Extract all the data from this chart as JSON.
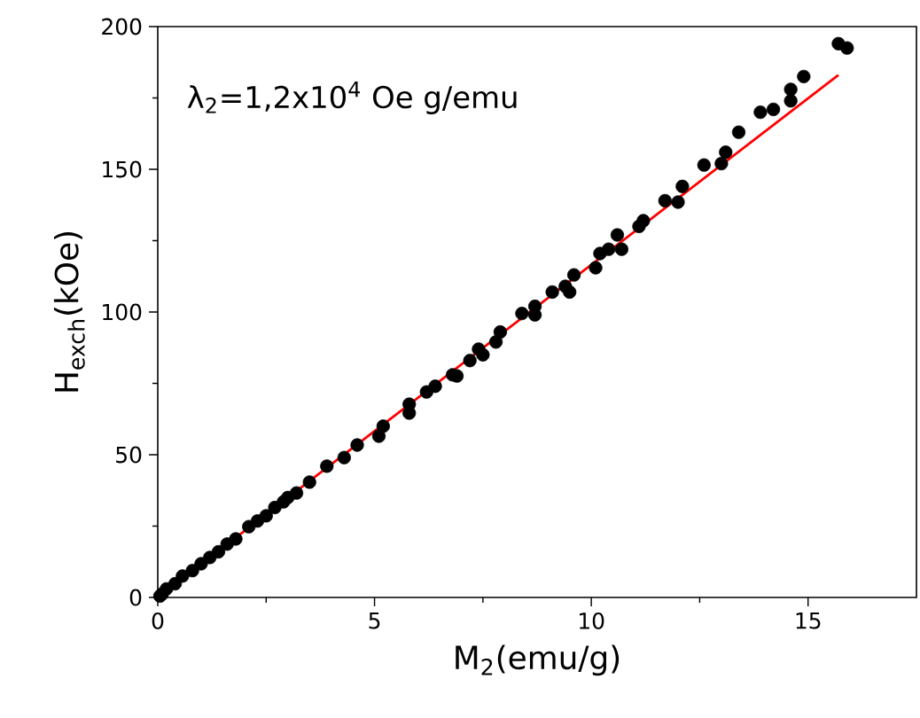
{
  "chart_data": {
    "type": "scatter",
    "xlabel": "M$_{2}$(emu/g)",
    "ylabel": "H$_{exch}$(kOe)",
    "annotations": [
      "λ$_{2}$=1,2x10$^{4}$ Oe g/emu"
    ],
    "xlim": [
      0,
      17.5
    ],
    "ylim": [
      0,
      200
    ],
    "xticks": [
      0,
      5,
      10,
      15
    ],
    "yticks": [
      0,
      50,
      100,
      150,
      200
    ],
    "marker": "circle",
    "series": [
      {
        "color": "#000000",
        "x": [
          0.05,
          0.1,
          0.2,
          0.4,
          0.57,
          0.8,
          1.0,
          1.2,
          1.4,
          1.6,
          1.8,
          2.1,
          2.3,
          2.5,
          2.7,
          2.9,
          3.0,
          3.2,
          3.5,
          3.9,
          4.3,
          4.6,
          5.1,
          5.2,
          5.8,
          5.8,
          6.2,
          6.4,
          6.8,
          6.9,
          7.2,
          7.4,
          7.5,
          7.8,
          7.9,
          8.4,
          8.7,
          8.7,
          9.1,
          9.4,
          9.5,
          9.6,
          10.1,
          10.2,
          10.4,
          10.6,
          10.7,
          11.1,
          11.2,
          11.7,
          12.0,
          12.1,
          12.6,
          13.0,
          13.1,
          13.4,
          13.9,
          14.2,
          14.6,
          14.6,
          14.9,
          15.7,
          15.9
        ],
        "values": [
          0.5,
          1.2,
          3,
          4.8,
          7.5,
          9.4,
          11.8,
          14,
          16,
          18.7,
          20.5,
          24.8,
          26.8,
          28.6,
          31.5,
          33.5,
          35,
          36.6,
          40.4,
          46,
          49,
          53.4,
          56.5,
          60,
          64.6,
          67.7,
          72,
          74,
          78,
          77.6,
          83,
          87,
          85,
          89.5,
          93,
          99.5,
          99,
          102,
          107,
          109,
          107,
          113,
          115.5,
          120.5,
          122,
          127,
          122,
          130,
          132,
          139,
          138.5,
          144,
          151.5,
          152,
          156,
          163,
          170,
          171,
          174,
          178,
          182.5,
          194,
          192.5
        ]
      },
      {
        "type": "line",
        "marker": "none",
        "color": "#ff0000",
        "x": [
          0,
          15.7
        ],
        "values": [
          0,
          183
        ]
      }
    ]
  }
}
